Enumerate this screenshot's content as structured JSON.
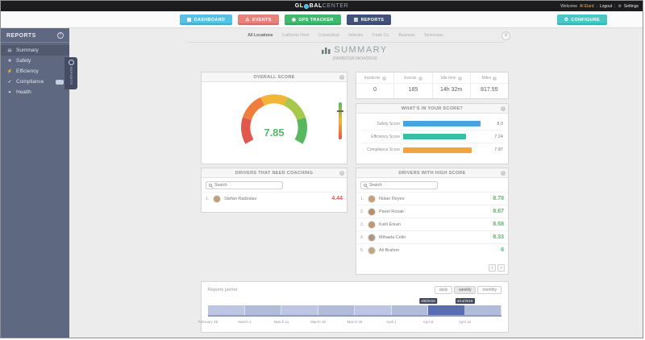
{
  "topbar": {
    "logo_left": "GL",
    "logo_mid": "BAL",
    "logo_right": "CENTER",
    "welcome": "Welcome",
    "user": "Al Elard",
    "logout": "Logout",
    "settings": "Settings"
  },
  "nav": {
    "buttons": [
      {
        "label": "DASHBOARD",
        "icon": "dashboard",
        "color": "#53c1e8"
      },
      {
        "label": "EVENTS",
        "icon": "alert",
        "color": "#e88179"
      },
      {
        "label": "GPS TRACKER",
        "icon": "pin",
        "color": "#3fb96e"
      },
      {
        "label": "REPORTS",
        "icon": "chart",
        "color": "#41517c",
        "active": true
      },
      {
        "label": "CONFIGURE",
        "icon": "gear",
        "color": "#45c8c8",
        "right": true
      }
    ]
  },
  "sidebar": {
    "title": "REPORTS",
    "flag_label": "REPORTS",
    "items": [
      {
        "id": "summary",
        "label": "Summary",
        "active": true
      },
      {
        "id": "safety",
        "label": "Safety"
      },
      {
        "id": "efficiency",
        "label": "Efficiency"
      },
      {
        "id": "compliance",
        "label": "Compliance",
        "badge": true
      },
      {
        "id": "health",
        "label": "Health"
      }
    ]
  },
  "tabs_active": 0,
  "tabs": [
    "All Locations",
    "California Fleet",
    "Connecticut",
    "Vehicles",
    "Trade Co.",
    "Business",
    "Tennessee"
  ],
  "page": {
    "title": "SUMMARY",
    "subtitle": "(04/08/2018-04/14/2018)"
  },
  "overall_score": {
    "header": "OVERALL SCORE",
    "value": "7.85",
    "value_color": "#56b868"
  },
  "stats": {
    "columns": [
      {
        "label": "Incidents",
        "value": "0"
      },
      {
        "label": "Events",
        "value": "185"
      },
      {
        "label": "Idle time",
        "value": "14h 32m"
      },
      {
        "label": "Miles",
        "value": "817.55"
      }
    ]
  },
  "score_breakdown": {
    "header": "WHAT'S IN YOUR SCORE?",
    "bars": [
      {
        "label": "Safety Score",
        "value": 8.9,
        "display": "8.9",
        "color": "#4aa3df"
      },
      {
        "label": "Efficiency Score",
        "value": 7.24,
        "display": "7.24",
        "color": "#36bfa3"
      },
      {
        "label": "Compliance Score",
        "value": 7.87,
        "display": "7.87",
        "color": "#f2a33c"
      }
    ]
  },
  "coaching": {
    "header": "DRIVERS THAT NEED COACHING",
    "search_placeholder": "Search",
    "rows": [
      {
        "rank": "1.",
        "name": "Stefan Radoslav",
        "score": "4.44",
        "avatar_color": "#c0a07a"
      }
    ]
  },
  "high_score": {
    "header": "DRIVERS WITH HIGH SCORE",
    "search_placeholder": "Search",
    "rows": [
      {
        "rank": "1.",
        "name": "Nolan Reyes",
        "score": "8.78",
        "avatar_color": "#caa07a"
      },
      {
        "rank": "2.",
        "name": "Pavel Rosak",
        "score": "8.67",
        "avatar_color": "#b98c6a"
      },
      {
        "rank": "3.",
        "name": "Karli Erkan",
        "score": "8.58",
        "avatar_color": "#c2976f"
      },
      {
        "rank": "4.",
        "name": "Mihaela Celin",
        "score": "8.33",
        "avatar_color": "#ad9a7e"
      },
      {
        "rank": "5.",
        "name": "Ali Brahim",
        "score": "8",
        "avatar_color": "#c4a884"
      }
    ]
  },
  "reports_period": {
    "label": "Reports period",
    "buttons": [
      {
        "label": "daily"
      },
      {
        "label": "weekly",
        "active": true
      },
      {
        "label": "monthly"
      }
    ],
    "range_start": "4/8/2018",
    "range_end": "4/14/2018",
    "ticks": [
      "February 25",
      "March 4",
      "March 11",
      "March 18",
      "March 25",
      "April 1",
      "April 8",
      "April 15"
    ],
    "segment_count": 8,
    "selected_segment": 6,
    "colors": {
      "segment": "#bdc6e2",
      "segment_alt": "#b1bbda",
      "selected": "#5a6db3",
      "badge": "#3f4759"
    }
  },
  "chart_data": [
    {
      "type": "gauge",
      "title": "OVERALL SCORE",
      "value": 7.85,
      "range": [
        0,
        10
      ],
      "color_scale": [
        "#e2574c",
        "#ef7d3b",
        "#f2b53a",
        "#a7c94b",
        "#57b85f"
      ]
    },
    {
      "type": "bar",
      "title": "WHAT'S IN YOUR SCORE?",
      "categories": [
        "Safety Score",
        "Efficiency Score",
        "Compliance Score"
      ],
      "values": [
        8.9,
        7.24,
        7.87
      ],
      "xlim": [
        0,
        10
      ],
      "orientation": "horizontal"
    },
    {
      "type": "timeline",
      "title": "Reports period",
      "ticks": [
        "February 25",
        "March 4",
        "March 11",
        "March 18",
        "March 25",
        "April 1",
        "April 8",
        "April 15"
      ],
      "selected_range": [
        "4/8/2018",
        "4/14/2018"
      ]
    }
  ]
}
